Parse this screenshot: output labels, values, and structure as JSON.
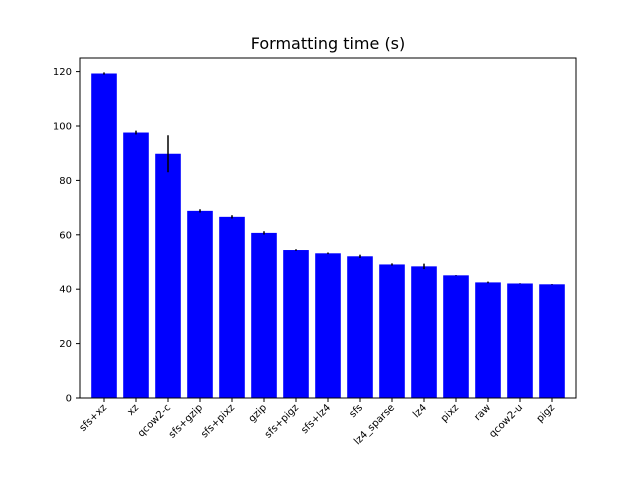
{
  "chart_data": {
    "type": "bar",
    "title": "Formatting time (s)",
    "xlabel": "",
    "ylabel": "",
    "categories": [
      "sfs+xz",
      "xz",
      "qcow2-c",
      "sfs+gzip",
      "sfs+pixz",
      "gzip",
      "sfs+pigz",
      "sfs+lz4",
      "sfs",
      "lz4_sparse",
      "lz4",
      "pixz",
      "raw",
      "qcow2-u",
      "pigz"
    ],
    "values": [
      119.3,
      97.6,
      89.8,
      68.8,
      66.6,
      60.7,
      54.4,
      53.2,
      52.1,
      49.1,
      48.4,
      45.1,
      42.5,
      42.1,
      41.8
    ],
    "error": [
      0.4,
      0.7,
      6.8,
      0.6,
      0.6,
      0.6,
      0.3,
      0.3,
      0.6,
      0.4,
      1.0,
      0.1,
      0.3,
      0.1,
      0.1
    ],
    "ylim": [
      0,
      125
    ],
    "yticks": [
      0,
      20,
      40,
      60,
      80,
      100,
      120
    ],
    "grid": false,
    "legend": "none",
    "bar_color": "#0000ff",
    "error_color": "#000000"
  }
}
